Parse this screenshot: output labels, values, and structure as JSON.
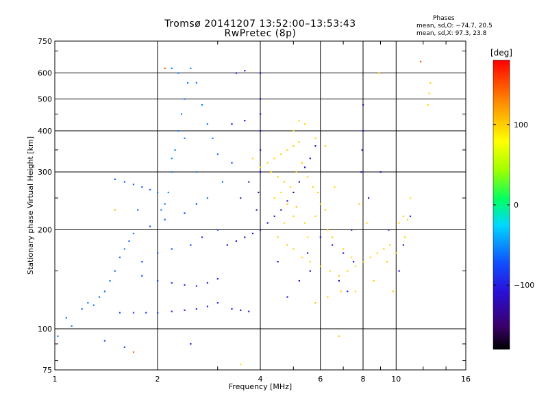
{
  "chart_data": {
    "type": "scatter",
    "title": "Tromsø 20141207 13:52:00–13:53:43",
    "subtitle": "RwPretec (8p)",
    "xlabel": "Frequency [MHz]",
    "ylabel": "Stationary phase Virtual Height [km]",
    "xscale": "log",
    "yscale": "log",
    "xlim": [
      1,
      16
    ],
    "ylim": [
      75,
      750
    ],
    "xticks": [
      1,
      2,
      4,
      6,
      8,
      10,
      16
    ],
    "yticks": [
      75,
      100,
      200,
      300,
      400,
      500,
      600,
      750
    ],
    "grid": true,
    "stats": {
      "title": "Phases",
      "o_label": "mean, sd,O: −74.7, 20.5",
      "x_label": "mean, sd,X:  97.3, 23.8"
    },
    "colorbar": {
      "unit": "[deg]",
      "range": [
        -180,
        180
      ],
      "ticks": [
        100,
        0,
        -100
      ],
      "colormap": "rainbow"
    },
    "series": [
      {
        "mode": "O",
        "mean_phase": -74.7,
        "points": [
          [
            1.02,
            95,
            -60
          ],
          [
            1.08,
            108,
            -55
          ],
          [
            1.12,
            102,
            -50
          ],
          [
            1.2,
            115,
            -62
          ],
          [
            1.25,
            120,
            -55
          ],
          [
            1.3,
            118,
            -58
          ],
          [
            1.35,
            125,
            -60
          ],
          [
            1.4,
            130,
            -62
          ],
          [
            1.45,
            140,
            -58
          ],
          [
            1.5,
            150,
            -60
          ],
          [
            1.55,
            165,
            -62
          ],
          [
            1.6,
            175,
            -55
          ],
          [
            1.65,
            185,
            -60
          ],
          [
            1.7,
            195,
            -58
          ],
          [
            1.5,
            285,
            -75
          ],
          [
            1.6,
            280,
            -70
          ],
          [
            1.7,
            275,
            -68
          ],
          [
            1.8,
            270,
            -65
          ],
          [
            1.9,
            265,
            -62
          ],
          [
            2.0,
            260,
            -60
          ],
          [
            1.55,
            112,
            -80
          ],
          [
            1.7,
            112,
            -82
          ],
          [
            1.85,
            112,
            -85
          ],
          [
            2.0,
            112,
            -88
          ],
          [
            2.2,
            113,
            -90
          ],
          [
            2.4,
            114,
            -90
          ],
          [
            2.6,
            115,
            -90
          ],
          [
            2.8,
            117,
            -90
          ],
          [
            3.0,
            120,
            -92
          ],
          [
            1.8,
            145,
            -80
          ],
          [
            2.0,
            140,
            -82
          ],
          [
            2.2,
            138,
            -85
          ],
          [
            2.4,
            136,
            -88
          ],
          [
            2.6,
            135,
            -90
          ],
          [
            2.8,
            138,
            -90
          ],
          [
            3.0,
            142,
            -92
          ],
          [
            2.05,
            230,
            -55
          ],
          [
            2.1,
            240,
            -55
          ],
          [
            2.15,
            260,
            -56
          ],
          [
            2.2,
            300,
            -55
          ],
          [
            2.25,
            350,
            -55
          ],
          [
            2.3,
            400,
            -56
          ],
          [
            2.35,
            450,
            -55
          ],
          [
            2.4,
            500,
            -55
          ],
          [
            2.45,
            560,
            -55
          ],
          [
            2.5,
            620,
            -54
          ],
          [
            2.2,
            620,
            -55
          ],
          [
            2.3,
            600,
            -56
          ],
          [
            2.6,
            560,
            -55
          ],
          [
            2.7,
            480,
            -56
          ],
          [
            2.8,
            420,
            -55
          ],
          [
            2.9,
            380,
            -56
          ],
          [
            3.0,
            340,
            -55
          ],
          [
            3.3,
            115,
            -100
          ],
          [
            3.5,
            114,
            -100
          ],
          [
            3.7,
            113,
            -100
          ],
          [
            3.2,
            180,
            -105
          ],
          [
            3.4,
            185,
            -105
          ],
          [
            3.6,
            190,
            -108
          ],
          [
            3.8,
            195,
            -110
          ],
          [
            4.0,
            200,
            -112
          ],
          [
            4.2,
            210,
            -115
          ],
          [
            4.4,
            220,
            -115
          ],
          [
            4.6,
            230,
            -118
          ],
          [
            4.8,
            245,
            -118
          ],
          [
            5.0,
            260,
            -120
          ],
          [
            5.2,
            280,
            -118
          ],
          [
            5.4,
            310,
            -115
          ],
          [
            5.6,
            330,
            -115
          ],
          [
            5.8,
            360,
            -112
          ],
          [
            3.9,
            230,
            -120
          ],
          [
            3.95,
            260,
            -120
          ],
          [
            4.0,
            300,
            -122
          ],
          [
            4.0,
            350,
            -120
          ],
          [
            4.0,
            400,
            -118
          ],
          [
            4.0,
            450,
            -120
          ],
          [
            4.0,
            500,
            -118
          ],
          [
            4.0,
            600,
            -118
          ],
          [
            3.4,
            600,
            -100
          ],
          [
            3.6,
            610,
            -100
          ],
          [
            3.3,
            420,
            -105
          ],
          [
            3.6,
            430,
            -108
          ],
          [
            7.9,
            300,
            -110
          ],
          [
            7.95,
            350,
            -112
          ],
          [
            8.0,
            400,
            -115
          ],
          [
            8.0,
            480,
            -112
          ],
          [
            6.5,
            180,
            -100
          ],
          [
            7.0,
            170,
            -105
          ],
          [
            7.5,
            160,
            -110
          ],
          [
            7.2,
            130,
            -100
          ],
          [
            9.5,
            200,
            -100
          ],
          [
            10.5,
            180,
            -105
          ],
          [
            11.0,
            220,
            -100
          ],
          [
            10.2,
            150,
            -105
          ],
          [
            2.5,
            90,
            -100
          ],
          [
            1.4,
            92,
            -80
          ],
          [
            1.6,
            88,
            -85
          ],
          [
            1.8,
            160,
            -75
          ],
          [
            2.0,
            170,
            -70
          ],
          [
            2.2,
            175,
            -72
          ],
          [
            2.5,
            180,
            -75
          ],
          [
            2.7,
            190,
            -80
          ],
          [
            3.0,
            200,
            -85
          ],
          [
            1.9,
            205,
            -70
          ],
          [
            2.1,
            215,
            -68
          ],
          [
            2.4,
            225,
            -70
          ],
          [
            2.6,
            240,
            -72
          ],
          [
            1.75,
            230,
            -65
          ],
          [
            2.2,
            330,
            -50
          ],
          [
            2.4,
            380,
            -52
          ],
          [
            2.6,
            300,
            -55
          ],
          [
            2.8,
            250,
            -60
          ],
          [
            3.1,
            280,
            -65
          ],
          [
            3.3,
            320,
            -80
          ],
          [
            3.5,
            250,
            -90
          ],
          [
            3.7,
            280,
            -95
          ],
          [
            4.5,
            160,
            -110
          ],
          [
            5.2,
            140,
            -108
          ],
          [
            5.5,
            170,
            -110
          ],
          [
            6.0,
            190,
            -112
          ],
          [
            4.8,
            125,
            -105
          ],
          [
            5.6,
            150,
            -110
          ],
          [
            6.8,
            140,
            -112
          ],
          [
            7.4,
            200,
            -110
          ],
          [
            8.3,
            250,
            -108
          ],
          [
            9.0,
            300,
            -105
          ]
        ]
      },
      {
        "mode": "X",
        "mean_phase": 97.3,
        "points": [
          [
            4.2,
            320,
            95
          ],
          [
            4.4,
            330,
            100
          ],
          [
            4.6,
            340,
            98
          ],
          [
            4.8,
            350,
            95
          ],
          [
            5.0,
            360,
            100
          ],
          [
            5.2,
            370,
            98
          ],
          [
            4.3,
            300,
            95
          ],
          [
            4.5,
            290,
            97
          ],
          [
            4.7,
            280,
            100
          ],
          [
            4.9,
            270,
            98
          ],
          [
            5.1,
            300,
            100
          ],
          [
            5.3,
            320,
            102
          ],
          [
            5.5,
            290,
            95
          ],
          [
            5.7,
            270,
            98
          ],
          [
            5.9,
            260,
            100
          ],
          [
            6.0,
            240,
            95
          ],
          [
            6.2,
            230,
            97
          ],
          [
            4.4,
            250,
            98
          ],
          [
            4.6,
            260,
            95
          ],
          [
            4.8,
            240,
            100
          ],
          [
            5.0,
            220,
            98
          ],
          [
            5.4,
            210,
            95
          ],
          [
            5.8,
            220,
            100
          ],
          [
            6.3,
            200,
            98
          ],
          [
            4.5,
            190,
            95
          ],
          [
            4.8,
            180,
            100
          ],
          [
            5.0,
            175,
            98
          ],
          [
            5.3,
            165,
            95
          ],
          [
            5.6,
            160,
            100
          ],
          [
            6.0,
            155,
            98
          ],
          [
            6.4,
            150,
            95
          ],
          [
            6.8,
            145,
            100
          ],
          [
            7.2,
            150,
            98
          ],
          [
            7.6,
            155,
            95
          ],
          [
            8.0,
            160,
            100
          ],
          [
            8.4,
            165,
            98
          ],
          [
            8.8,
            170,
            95
          ],
          [
            9.2,
            175,
            100
          ],
          [
            9.6,
            180,
            98
          ],
          [
            10.2,
            210,
            95
          ],
          [
            10.5,
            220,
            100
          ],
          [
            10.8,
            215,
            98
          ],
          [
            5.0,
            400,
            92
          ],
          [
            5.4,
            420,
            95
          ],
          [
            5.8,
            380,
            98
          ],
          [
            6.2,
            360,
            100
          ],
          [
            5.2,
            430,
            95
          ],
          [
            12.5,
            520,
            100
          ],
          [
            12.6,
            560,
            98
          ],
          [
            12.4,
            480,
            95
          ],
          [
            9.4,
            160,
            100
          ],
          [
            10.0,
            170,
            98
          ],
          [
            3.8,
            330,
            95
          ],
          [
            4.0,
            310,
            100
          ],
          [
            6.5,
            190,
            100
          ],
          [
            7.0,
            175,
            98
          ],
          [
            7.4,
            165,
            95
          ],
          [
            5.5,
            190,
            92
          ],
          [
            6.6,
            270,
            95
          ],
          [
            7.8,
            240,
            98
          ],
          [
            8.2,
            210,
            100
          ],
          [
            6.9,
            130,
            100
          ],
          [
            7.6,
            130,
            95
          ],
          [
            8.6,
            140,
            100
          ],
          [
            11.0,
            250,
            90
          ],
          [
            3.5,
            78,
            95
          ],
          [
            6.8,
            95,
            100
          ],
          [
            1.7,
            85,
            140
          ],
          [
            1.5,
            230,
            110
          ],
          [
            2.1,
            620,
            150
          ],
          [
            8.9,
            600,
            100
          ],
          [
            11.8,
            650,
            150
          ],
          [
            5.8,
            120,
            105
          ],
          [
            6.3,
            125,
            98
          ],
          [
            9.8,
            130,
            102
          ],
          [
            10.6,
            190,
            96
          ],
          [
            4.7,
            210,
            94
          ],
          [
            5.1,
            235,
            101
          ]
        ]
      }
    ]
  }
}
